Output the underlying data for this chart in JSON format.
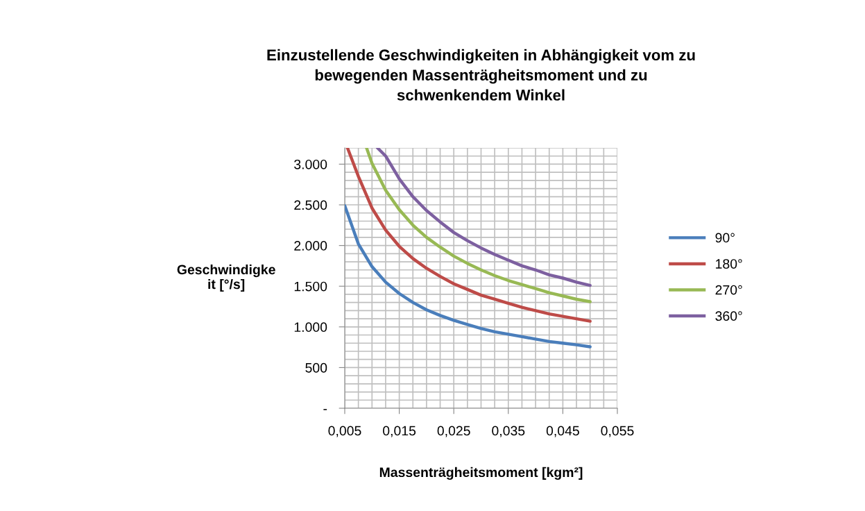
{
  "chart_data": {
    "type": "line",
    "title": "Einzustellende Geschwindigkeiten in Abhängigkeit vom zu\nbewegenden Massenträgheitsmoment und zu\nschwenkendem Winkel",
    "xlabel": "Massenträgheitsmoment [kgm²]",
    "ylabel": "Geschwindigke\nit [°/s]",
    "series": [
      {
        "name": "90°",
        "color": "#4a7ebb",
        "x": [
          0.005,
          0.0075,
          0.01,
          0.0125,
          0.015,
          0.0175,
          0.02,
          0.0225,
          0.025,
          0.0275,
          0.03,
          0.0325,
          0.035,
          0.0375,
          0.04,
          0.0425,
          0.045,
          0.0475,
          0.05
        ],
        "values": [
          2490,
          2020,
          1740,
          1550,
          1410,
          1300,
          1210,
          1140,
          1080,
          1030,
          980,
          940,
          910,
          880,
          850,
          820,
          800,
          780,
          755
        ]
      },
      {
        "name": "180°",
        "color": "#be4b48",
        "x": [
          0.0055,
          0.0075,
          0.01,
          0.0125,
          0.015,
          0.0175,
          0.02,
          0.0225,
          0.025,
          0.0275,
          0.03,
          0.0325,
          0.035,
          0.0375,
          0.04,
          0.0425,
          0.045,
          0.0475,
          0.05
        ],
        "values": [
          3200,
          2850,
          2460,
          2190,
          1990,
          1840,
          1720,
          1620,
          1530,
          1460,
          1390,
          1340,
          1290,
          1240,
          1200,
          1160,
          1130,
          1100,
          1070
        ]
      },
      {
        "name": "270°",
        "color": "#98b954",
        "x": [
          0.009,
          0.01,
          0.0125,
          0.015,
          0.0175,
          0.02,
          0.0225,
          0.025,
          0.0275,
          0.03,
          0.0325,
          0.035,
          0.0375,
          0.04,
          0.0425,
          0.045,
          0.0475,
          0.05
        ],
        "values": [
          3200,
          3010,
          2680,
          2440,
          2250,
          2100,
          1980,
          1870,
          1780,
          1700,
          1630,
          1570,
          1520,
          1470,
          1420,
          1380,
          1340,
          1310
        ]
      },
      {
        "name": "360°",
        "color": "#7d60a0",
        "x": [
          0.011,
          0.0125,
          0.015,
          0.0175,
          0.02,
          0.0225,
          0.025,
          0.0275,
          0.03,
          0.0325,
          0.035,
          0.0375,
          0.04,
          0.0425,
          0.045,
          0.0475,
          0.05
        ],
        "values": [
          3200,
          3100,
          2820,
          2600,
          2430,
          2290,
          2160,
          2060,
          1970,
          1890,
          1820,
          1750,
          1700,
          1640,
          1600,
          1550,
          1510
        ]
      }
    ],
    "xlim": [
      0.005,
      0.055
    ],
    "xticks": [
      {
        "value": 0.005,
        "label": "0,005"
      },
      {
        "value": 0.0075,
        "label": null
      },
      {
        "value": 0.01,
        "label": null
      },
      {
        "value": 0.0125,
        "label": null
      },
      {
        "value": 0.015,
        "label": "0,015"
      },
      {
        "value": 0.0175,
        "label": null
      },
      {
        "value": 0.02,
        "label": null
      },
      {
        "value": 0.0225,
        "label": null
      },
      {
        "value": 0.025,
        "label": "0,025"
      },
      {
        "value": 0.0275,
        "label": null
      },
      {
        "value": 0.03,
        "label": null
      },
      {
        "value": 0.0325,
        "label": null
      },
      {
        "value": 0.035,
        "label": "0,035"
      },
      {
        "value": 0.0375,
        "label": null
      },
      {
        "value": 0.04,
        "label": null
      },
      {
        "value": 0.0425,
        "label": null
      },
      {
        "value": 0.045,
        "label": "0,045"
      },
      {
        "value": 0.0475,
        "label": null
      },
      {
        "value": 0.05,
        "label": null
      },
      {
        "value": 0.0525,
        "label": null
      },
      {
        "value": 0.055,
        "label": "0,055"
      }
    ],
    "ylim": [
      0,
      3200
    ],
    "yticks": [
      {
        "value": 0,
        "label": "-"
      },
      {
        "value": 100,
        "label": null
      },
      {
        "value": 200,
        "label": null
      },
      {
        "value": 300,
        "label": null
      },
      {
        "value": 400,
        "label": null
      },
      {
        "value": 500,
        "label": "500"
      },
      {
        "value": 600,
        "label": null
      },
      {
        "value": 700,
        "label": null
      },
      {
        "value": 800,
        "label": null
      },
      {
        "value": 900,
        "label": null
      },
      {
        "value": 1000,
        "label": "1.000"
      },
      {
        "value": 1100,
        "label": null
      },
      {
        "value": 1200,
        "label": null
      },
      {
        "value": 1300,
        "label": null
      },
      {
        "value": 1400,
        "label": null
      },
      {
        "value": 1500,
        "label": "1.500"
      },
      {
        "value": 1600,
        "label": null
      },
      {
        "value": 1700,
        "label": null
      },
      {
        "value": 1800,
        "label": null
      },
      {
        "value": 1900,
        "label": null
      },
      {
        "value": 2000,
        "label": "2.000"
      },
      {
        "value": 2100,
        "label": null
      },
      {
        "value": 2200,
        "label": null
      },
      {
        "value": 2300,
        "label": null
      },
      {
        "value": 2400,
        "label": null
      },
      {
        "value": 2500,
        "label": "2.500"
      },
      {
        "value": 2600,
        "label": null
      },
      {
        "value": 2700,
        "label": null
      },
      {
        "value": 2800,
        "label": null
      },
      {
        "value": 2900,
        "label": null
      },
      {
        "value": 3000,
        "label": "3.000"
      },
      {
        "value": 3100,
        "label": null
      },
      {
        "value": 3200,
        "label": null
      }
    ],
    "grid": true,
    "legend": "right",
    "marker": "none",
    "line_style": "solid"
  }
}
